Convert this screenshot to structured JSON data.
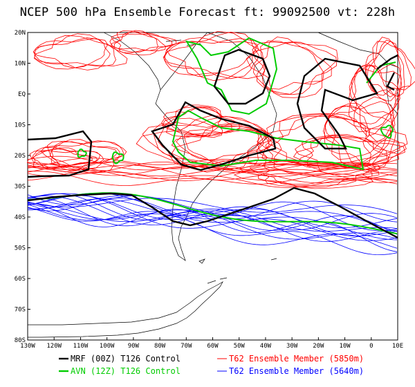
{
  "title": "NCEP 500 hPa Ensemble Forecast  ft: 99092500 vt: 228h",
  "axes": {
    "lat_labels": [
      "20N",
      "10N",
      "EQ",
      "10S",
      "20S",
      "30S",
      "40S",
      "50S",
      "60S",
      "70S",
      "80S"
    ],
    "lon_labels": [
      "130W",
      "120W",
      "110W",
      "100W",
      "90W",
      "80W",
      "70W",
      "60W",
      "50W",
      "40W",
      "30W",
      "20W",
      "10W",
      "0",
      "10E"
    ],
    "lat_range": [
      -80,
      20
    ],
    "lon_range": [
      -130,
      10
    ]
  },
  "legend": [
    {
      "label": "MRF (00Z) T126 Control",
      "color": "#000000"
    },
    {
      "label": "AVN (12Z) T126 Control",
      "color": "#00cc00"
    },
    {
      "label": "T62 Ensemble Member (5850m)",
      "color": "#ff0000"
    },
    {
      "label": "T62 Ensemble Member (5640m)",
      "color": "#0000ff"
    }
  ],
  "colors": {
    "mrf": "#000000",
    "avn": "#00cc00",
    "member_5850": "#ff0000",
    "member_5640": "#0000ff",
    "coast": "#000000"
  }
}
